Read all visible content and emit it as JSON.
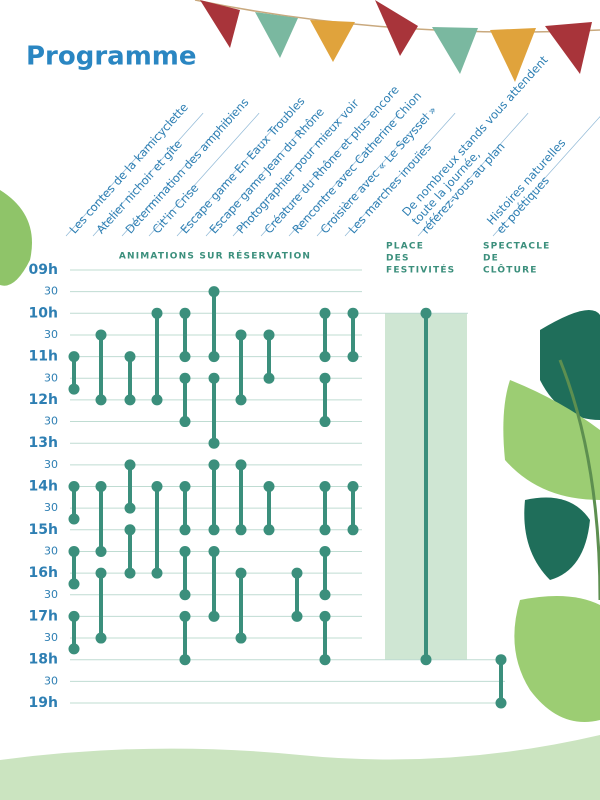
{
  "chart_data": {
    "type": "schedule",
    "title": "Programme",
    "color": "#3b8f7c",
    "label_color": "#2e7fb3",
    "band_color": "#cfe6d3",
    "grid": true,
    "ylim": [
      9,
      19
    ],
    "yticks": [
      {
        "value": 9,
        "label": "09h"
      },
      {
        "value": 9.5,
        "label": "30"
      },
      {
        "value": 10,
        "label": "10h"
      },
      {
        "value": 10.5,
        "label": "30"
      },
      {
        "value": 11,
        "label": "11h"
      },
      {
        "value": 11.5,
        "label": "30"
      },
      {
        "value": 12,
        "label": "12h"
      },
      {
        "value": 12.5,
        "label": "30"
      },
      {
        "value": 13,
        "label": "13h"
      },
      {
        "value": 13.5,
        "label": "30"
      },
      {
        "value": 14,
        "label": "14h"
      },
      {
        "value": 14.5,
        "label": "30"
      },
      {
        "value": 15,
        "label": "15h"
      },
      {
        "value": 15.5,
        "label": "30"
      },
      {
        "value": 16,
        "label": "16h"
      },
      {
        "value": 16.5,
        "label": "30"
      },
      {
        "value": 17,
        "label": "17h"
      },
      {
        "value": 17.5,
        "label": "30"
      },
      {
        "value": 18,
        "label": "18h"
      },
      {
        "value": 18.5,
        "label": "30"
      },
      {
        "value": 19,
        "label": "19h"
      }
    ],
    "groups": [
      {
        "lines": [
          "ANIMATIONS SUR RÉSERVATION"
        ]
      },
      {
        "lines": [
          "PLACE",
          "DES",
          "FESTIVITÉS"
        ]
      },
      {
        "lines": [
          "SPECTACLE",
          "DE",
          "CLÔTURE"
        ]
      }
    ],
    "activities": [
      {
        "name": [
          "Les contes de la kamicyclette"
        ],
        "sessions": [
          [
            11,
            11.75
          ],
          [
            14,
            14.75
          ],
          [
            15.5,
            16.25
          ],
          [
            17,
            17.75
          ]
        ]
      },
      {
        "name": [
          "Atelier nichoir et gîte"
        ],
        "sessions": [
          [
            10.5,
            12
          ],
          [
            14,
            15.5
          ],
          [
            16,
            17.5
          ]
        ]
      },
      {
        "name": [
          "Détermination des amphibiens"
        ],
        "sessions": [
          [
            11,
            12
          ],
          [
            13.5,
            14.5
          ],
          [
            15,
            16
          ]
        ]
      },
      {
        "name": [
          "Cit'in Crise"
        ],
        "sessions": [
          [
            10,
            12
          ],
          [
            14,
            16
          ]
        ]
      },
      {
        "name": [
          "Escape game En Eaux Troubles"
        ],
        "sessions": [
          [
            10,
            11
          ],
          [
            11.5,
            12.5
          ],
          [
            14,
            15
          ],
          [
            15.5,
            16.5
          ],
          [
            17,
            18
          ]
        ]
      },
      {
        "name": [
          "Escape game Jean du Rhône"
        ],
        "sessions": [
          [
            9.5,
            11
          ],
          [
            11.5,
            13
          ],
          [
            13.5,
            15
          ],
          [
            15.5,
            17
          ]
        ]
      },
      {
        "name": [
          "Photographier pour mieux voir"
        ],
        "sessions": [
          [
            10.5,
            12
          ],
          [
            13.5,
            15
          ],
          [
            16,
            17.5
          ]
        ]
      },
      {
        "name": [
          "Créature du Rhône et plus encore"
        ],
        "sessions": [
          [
            10.5,
            11.5
          ],
          [
            14,
            15
          ]
        ]
      },
      {
        "name": [
          "Rencontre avec Catherine Chion"
        ],
        "sessions": [
          [
            16,
            17
          ]
        ]
      },
      {
        "name": [
          "Croisière avec « Le Seyssel »"
        ],
        "sessions": [
          [
            10,
            11
          ],
          [
            11.5,
            12.5
          ],
          [
            14,
            15
          ],
          [
            15.5,
            16.5
          ],
          [
            17,
            18
          ]
        ]
      },
      {
        "name": [
          "Les marches inouïes"
        ],
        "sessions": [
          [
            10,
            11
          ],
          [
            14,
            15
          ]
        ]
      },
      {
        "name": [
          "De nombreux stands vous attendent",
          "toute la journée,",
          "référez-vous au plan"
        ],
        "sessions": [
          [
            10,
            18
          ]
        ],
        "band": true
      },
      {
        "name": [
          "Histoires naturelles",
          "et poétiques"
        ],
        "sessions": [
          [
            18,
            19
          ]
        ]
      }
    ]
  }
}
